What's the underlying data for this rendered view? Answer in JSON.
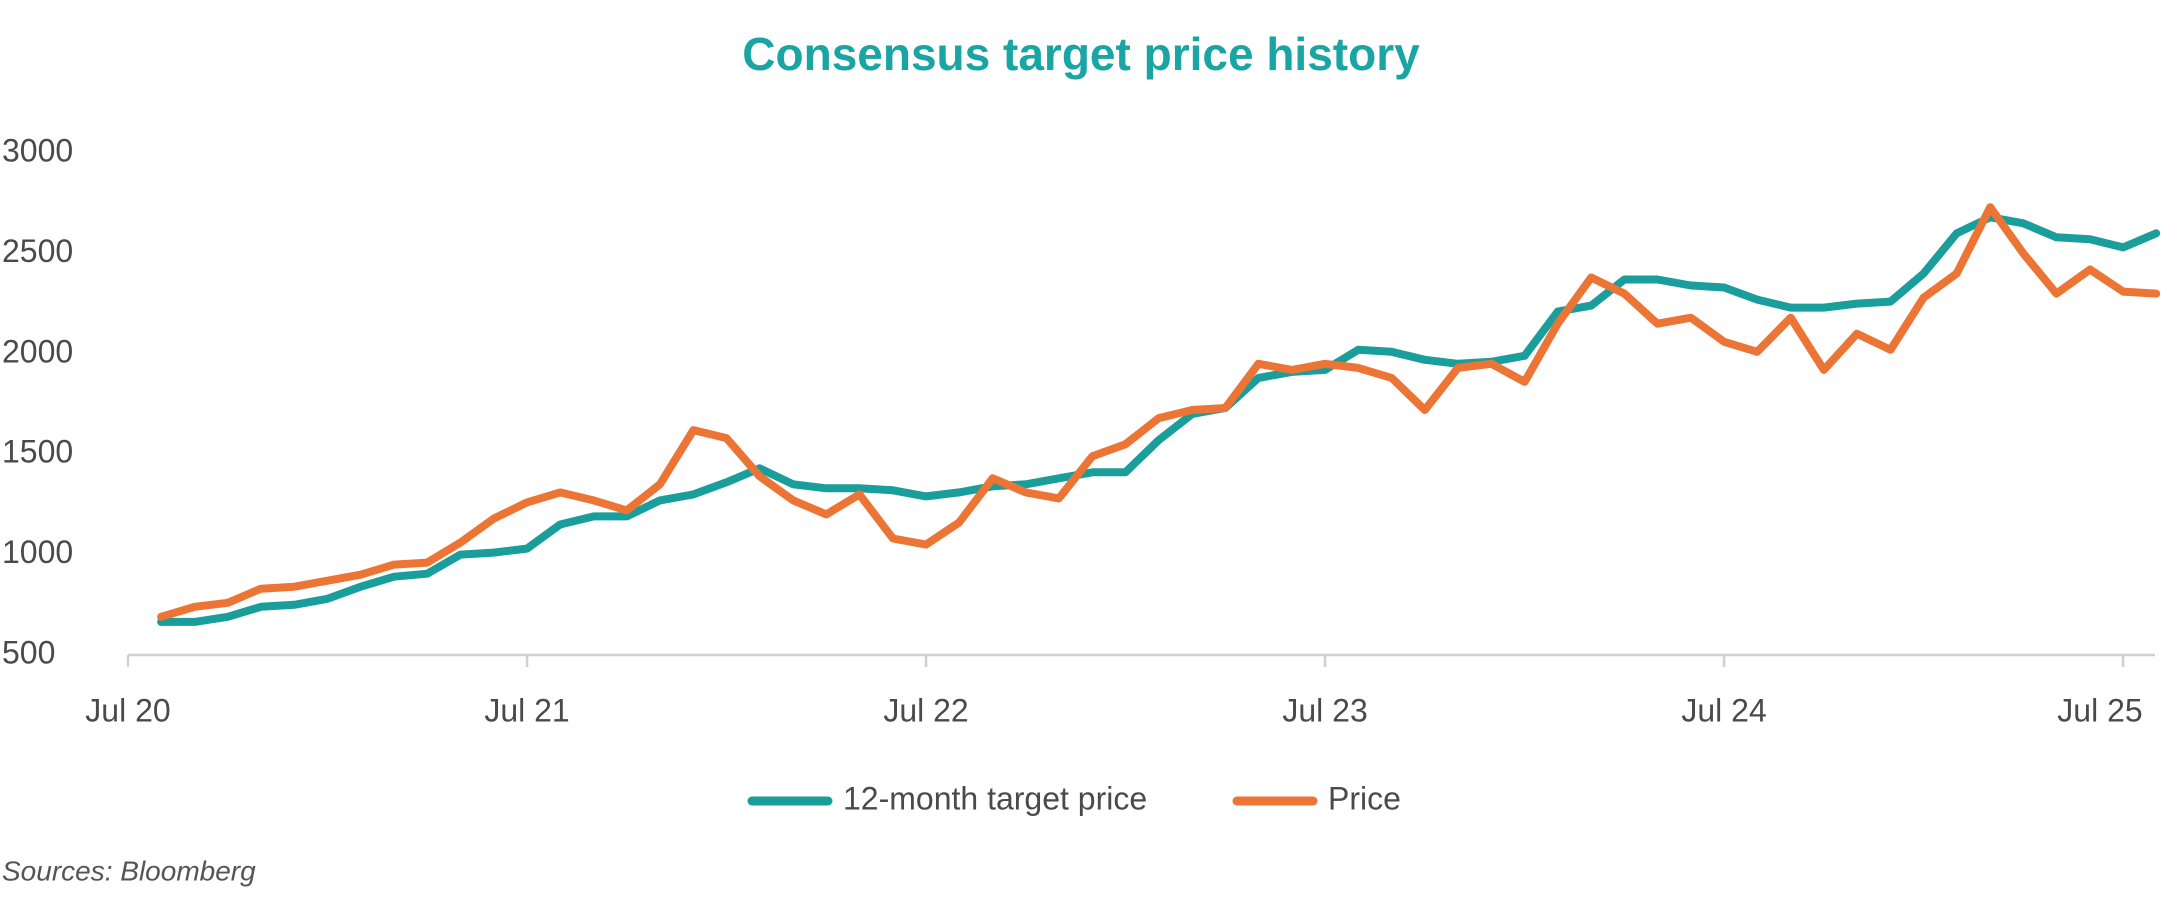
{
  "chart_data": {
    "type": "line",
    "title": "Consensus target price history",
    "x": [
      2020.583,
      2020.667,
      2020.75,
      2020.833,
      2020.917,
      2021,
      2021.083,
      2021.167,
      2021.25,
      2021.333,
      2021.417,
      2021.5,
      2021.583,
      2021.667,
      2021.75,
      2021.833,
      2021.917,
      2022,
      2022.083,
      2022.167,
      2022.25,
      2022.333,
      2022.417,
      2022.5,
      2022.583,
      2022.667,
      2022.75,
      2022.833,
      2022.917,
      2023,
      2023.083,
      2023.167,
      2023.25,
      2023.333,
      2023.417,
      2023.5,
      2023.583,
      2023.667,
      2023.75,
      2023.833,
      2023.917,
      2024,
      2024.083,
      2024.167,
      2024.25,
      2024.333,
      2024.417,
      2024.5,
      2024.583,
      2024.667,
      2024.75,
      2024.833,
      2024.917,
      2025,
      2025.083,
      2025.167,
      2025.25,
      2025.333,
      2025.417,
      2025.5,
      2025.583
    ],
    "series": [
      {
        "name": "12-month target price",
        "color": "#1a9e9b",
        "values": [
          665,
          665,
          690,
          740,
          750,
          780,
          840,
          890,
          905,
          1000,
          1010,
          1030,
          1150,
          1190,
          1190,
          1270,
          1300,
          1360,
          1430,
          1350,
          1330,
          1330,
          1320,
          1290,
          1310,
          1340,
          1350,
          1380,
          1410,
          1410,
          1570,
          1700,
          1730,
          1880,
          1910,
          1920,
          2020,
          2010,
          1970,
          1950,
          1960,
          1990,
          2210,
          2240,
          2370,
          2370,
          2340,
          2330,
          2270,
          2230,
          2230,
          2250,
          2260,
          2400,
          2600,
          2680,
          2650,
          2580,
          2570,
          2530,
          2600
        ]
      },
      {
        "name": "Price",
        "color": "#ec7535",
        "values": [
          690,
          740,
          760,
          830,
          840,
          870,
          900,
          950,
          960,
          1060,
          1180,
          1260,
          1310,
          1270,
          1220,
          1350,
          1620,
          1580,
          1390,
          1270,
          1200,
          1300,
          1080,
          1050,
          1160,
          1380,
          1310,
          1280,
          1490,
          1550,
          1680,
          1720,
          1730,
          1950,
          1920,
          1950,
          1930,
          1880,
          1720,
          1930,
          1950,
          1860,
          2150,
          2380,
          2300,
          2150,
          2180,
          2060,
          2010,
          2180,
          1920,
          2100,
          2020,
          2280,
          2400,
          2730,
          2500,
          2300,
          2420,
          2310,
          2300
        ]
      }
    ],
    "xlim": [
      2020.5,
      2025.58
    ],
    "xticks": [
      {
        "value": 2020.5,
        "label": "Jul 20"
      },
      {
        "value": 2021.5,
        "label": "Jul 21"
      },
      {
        "value": 2022.5,
        "label": "Jul 22"
      },
      {
        "value": 2023.5,
        "label": "Jul 23"
      },
      {
        "value": 2024.5,
        "label": "Jul 24"
      },
      {
        "value": 2025.5,
        "label": "Jul 25"
      }
    ],
    "ylim": [
      500,
      3000
    ],
    "yticks": [
      500,
      1000,
      1500,
      2000,
      2500,
      3000
    ],
    "grid": false,
    "legend": "bottom",
    "source": "Sources: Bloomberg"
  }
}
